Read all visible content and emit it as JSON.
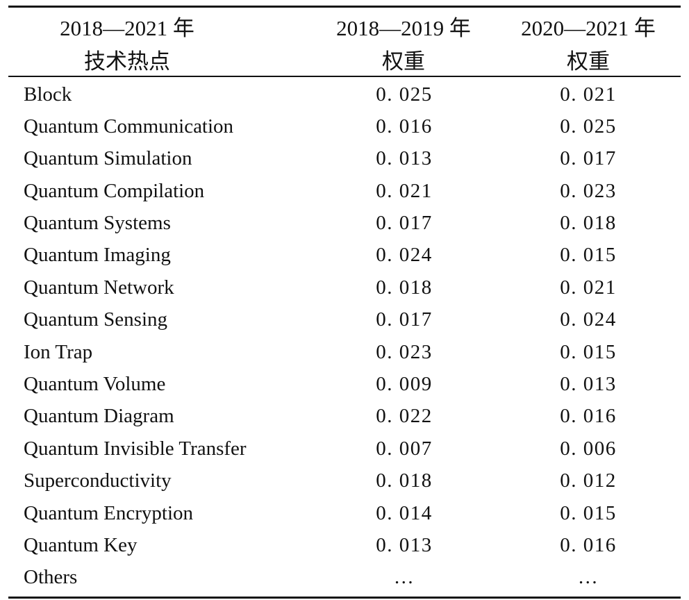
{
  "table": {
    "headers": [
      {
        "line1": "2018—2021 年",
        "line2": "技术热点"
      },
      {
        "line1": "2018—2019 年",
        "line2": "权重"
      },
      {
        "line1": "2020—2021 年",
        "line2": "权重"
      }
    ],
    "rows": [
      {
        "name": "Block",
        "w1819": "0. 025",
        "w2021": "0. 021"
      },
      {
        "name": "Quantum Communication",
        "w1819": "0. 016",
        "w2021": "0. 025"
      },
      {
        "name": "Quantum Simulation",
        "w1819": "0. 013",
        "w2021": "0. 017"
      },
      {
        "name": "Quantum Compilation",
        "w1819": "0. 021",
        "w2021": "0. 023"
      },
      {
        "name": "Quantum Systems",
        "w1819": "0. 017",
        "w2021": "0. 018"
      },
      {
        "name": "Quantum Imaging",
        "w1819": "0. 024",
        "w2021": "0. 015"
      },
      {
        "name": "Quantum Network",
        "w1819": "0. 018",
        "w2021": "0. 021"
      },
      {
        "name": "Quantum Sensing",
        "w1819": "0. 017",
        "w2021": "0. 024"
      },
      {
        "name": "Ion Trap",
        "w1819": "0. 023",
        "w2021": "0. 015"
      },
      {
        "name": "Quantum Volume",
        "w1819": "0. 009",
        "w2021": "0. 013"
      },
      {
        "name": "Quantum Diagram",
        "w1819": "0. 022",
        "w2021": "0. 016"
      },
      {
        "name": "Quantum Invisible Transfer",
        "w1819": "0. 007",
        "w2021": "0. 006"
      },
      {
        "name": "Superconductivity",
        "w1819": "0. 018",
        "w2021": "0. 012"
      },
      {
        "name": "Quantum Encryption",
        "w1819": "0. 014",
        "w2021": "0. 015"
      },
      {
        "name": "Quantum Key",
        "w1819": "0. 013",
        "w2021": "0. 016"
      },
      {
        "name": "Others",
        "w1819": "…",
        "w2021": "…"
      }
    ]
  }
}
